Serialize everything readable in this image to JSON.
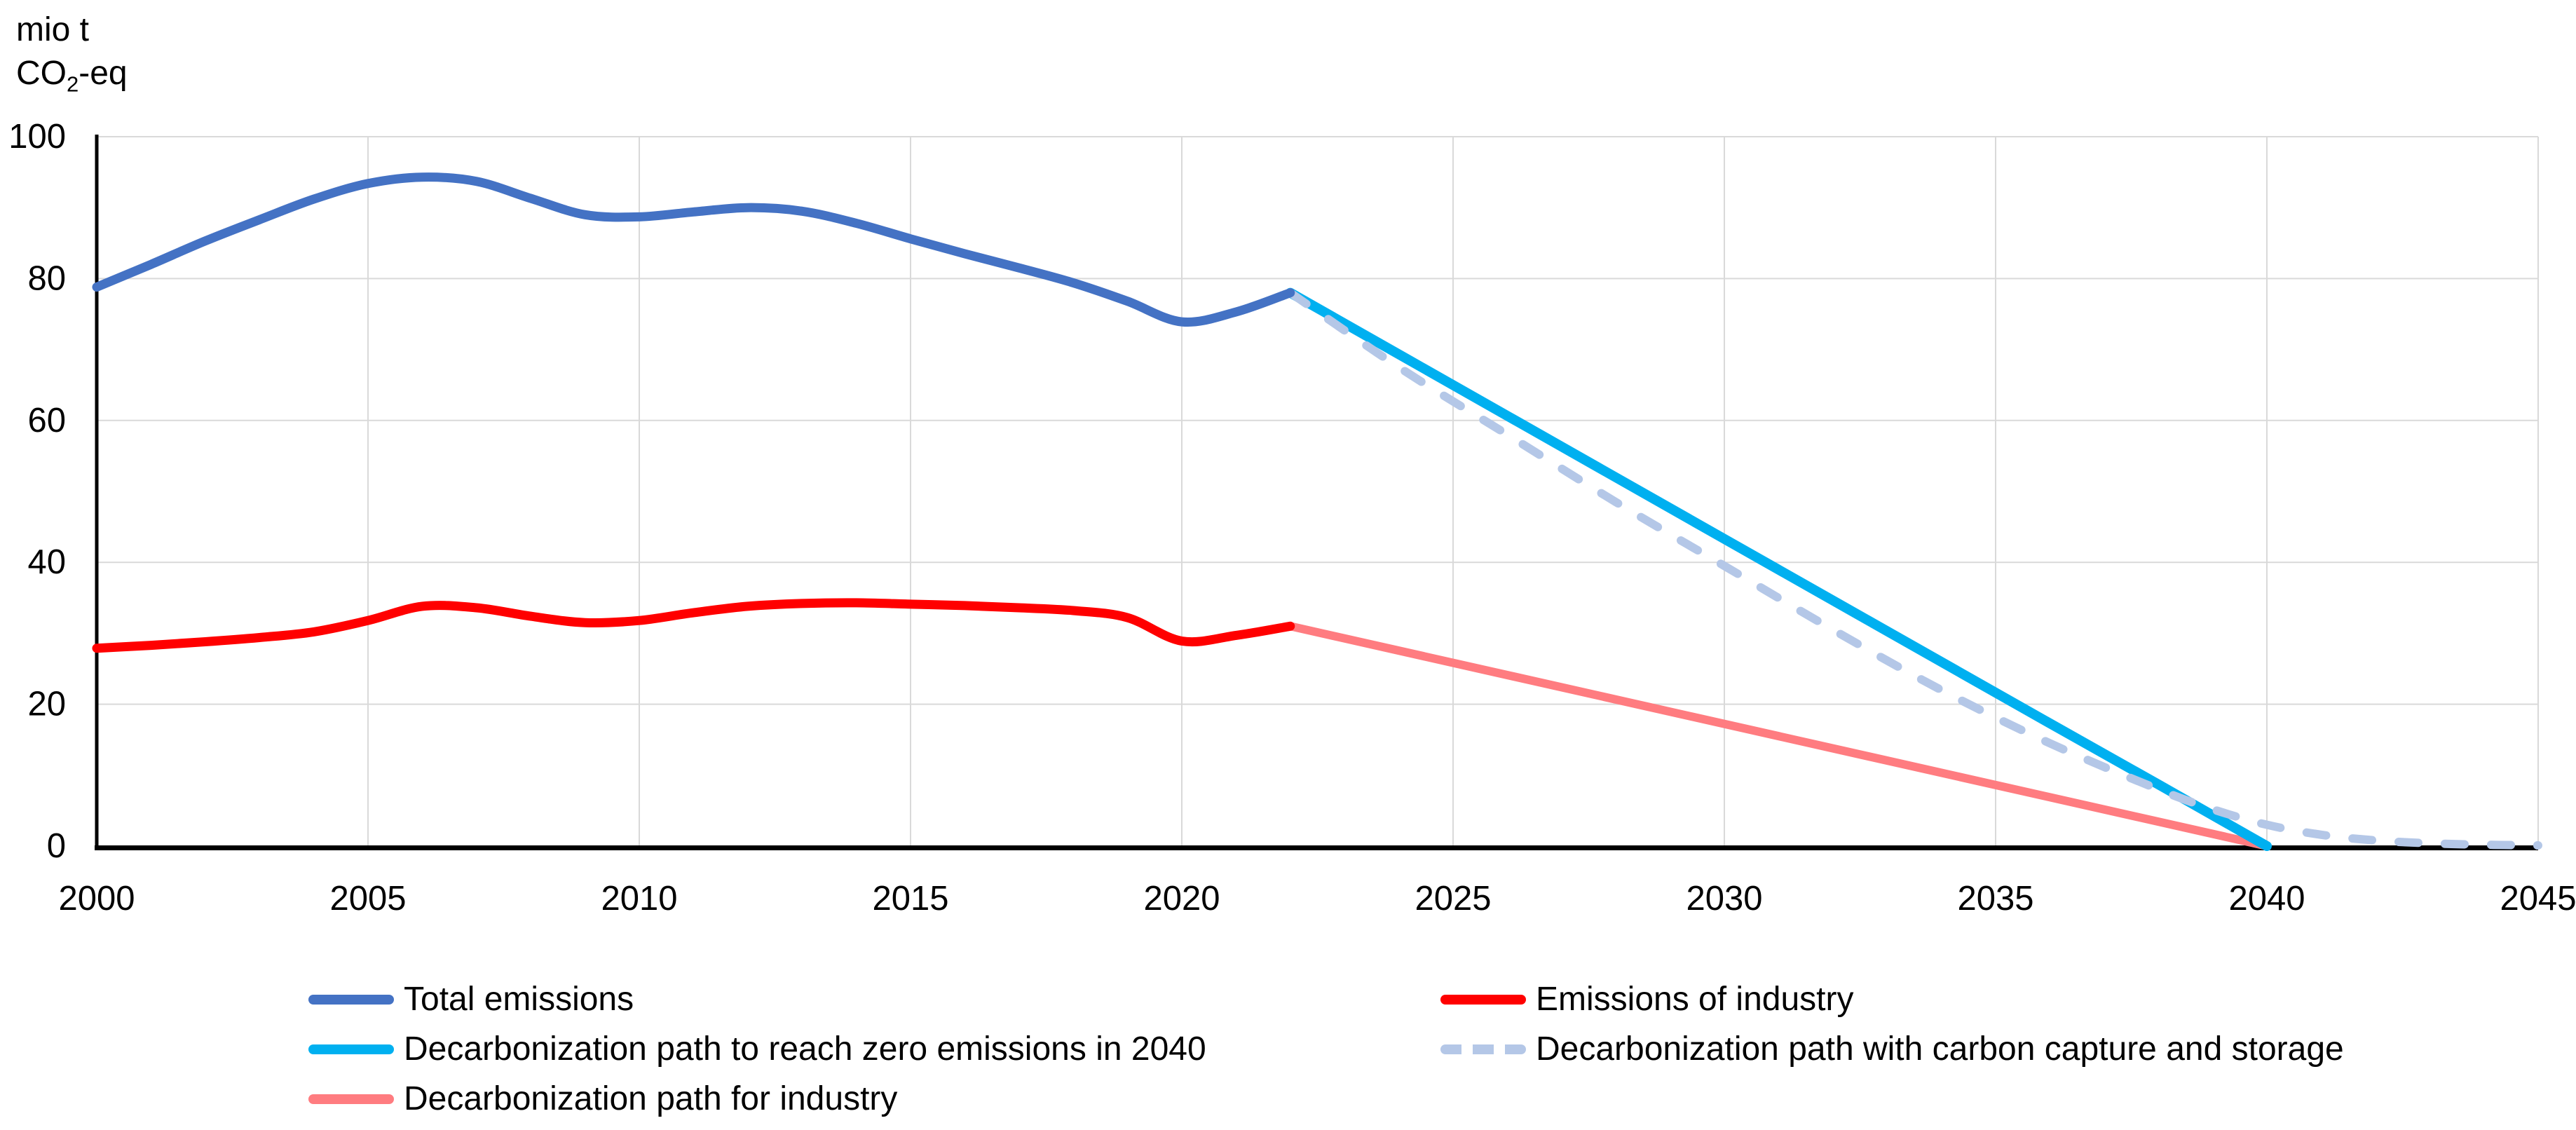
{
  "unit_label": {
    "line1": "mio t",
    "co": "CO",
    "sub": "2",
    "suffix": "-eq"
  },
  "axes": {
    "y_ticks": [
      0,
      20,
      40,
      60,
      80,
      100
    ],
    "x_ticks": [
      2000,
      2005,
      2010,
      2015,
      2020,
      2025,
      2030,
      2035,
      2040,
      2045
    ],
    "y_min": 0,
    "y_max": 100,
    "x_min": 2000,
    "x_max": 2045
  },
  "colors": {
    "grid": "#d9d9d9",
    "axis": "#000000",
    "text": "#000000",
    "total_emissions": "#4472C4",
    "emissions_of_industry": "#FF0000",
    "decarbonization_zero_2040": "#00B0F0",
    "decarbonization_ccs": "#B4C7E7",
    "decarbonization_industry": "#FF7C80"
  },
  "chart_data": {
    "type": "line",
    "title": "",
    "ylabel": "mio t CO2-eq",
    "xlabel": "",
    "ylim": [
      0,
      100
    ],
    "xlim": [
      2000,
      2045
    ],
    "grid": true,
    "legend_position": "bottom",
    "series": [
      {
        "id": "decarbonization_industry",
        "name": "Decarbonization path for industry",
        "color": "#FF7C80",
        "dashed": false,
        "smooth": false,
        "points": [
          [
            2022,
            31
          ],
          [
            2040,
            0
          ]
        ]
      },
      {
        "id": "decarbonization_zero_2040",
        "name": "Decarbonization path to reach zero emissions in 2040",
        "color": "#00B0F0",
        "dashed": false,
        "smooth": false,
        "points": [
          [
            2022,
            78
          ],
          [
            2030,
            43.3
          ],
          [
            2036,
            17.3
          ],
          [
            2038,
            8.7
          ],
          [
            2040,
            0
          ]
        ]
      },
      {
        "id": "decarbonization_ccs",
        "name": "Decarbonization path with carbon capture and storage",
        "color": "#B4C7E7",
        "dashed": true,
        "smooth": true,
        "points": [
          [
            2022,
            78
          ],
          [
            2024,
            67.5
          ],
          [
            2026,
            58
          ],
          [
            2028,
            48.5
          ],
          [
            2030,
            39.5
          ],
          [
            2032,
            30.5
          ],
          [
            2034,
            22
          ],
          [
            2036,
            14.5
          ],
          [
            2038,
            8
          ],
          [
            2039,
            5.2
          ],
          [
            2040,
            3
          ],
          [
            2041,
            1.6
          ],
          [
            2042,
            0.8
          ],
          [
            2043,
            0.4
          ],
          [
            2044,
            0.2
          ],
          [
            2045,
            0.1
          ]
        ]
      },
      {
        "id": "emissions_of_industry",
        "name": "Emissions of industry",
        "color": "#FF0000",
        "dashed": false,
        "smooth": true,
        "points": [
          [
            2000,
            27.9
          ],
          [
            2001,
            28.3
          ],
          [
            2002,
            28.8
          ],
          [
            2003,
            29.4
          ],
          [
            2004,
            30.2
          ],
          [
            2005,
            31.8
          ],
          [
            2006,
            33.8
          ],
          [
            2007,
            33.6
          ],
          [
            2008,
            32.4
          ],
          [
            2009,
            31.5
          ],
          [
            2010,
            31.8
          ],
          [
            2011,
            32.9
          ],
          [
            2012,
            33.8
          ],
          [
            2013,
            34.2
          ],
          [
            2014,
            34.3
          ],
          [
            2015,
            34.1
          ],
          [
            2016,
            33.9
          ],
          [
            2017,
            33.6
          ],
          [
            2018,
            33.2
          ],
          [
            2019,
            32.2
          ],
          [
            2020,
            28.9
          ],
          [
            2021,
            29.7
          ],
          [
            2022,
            31
          ]
        ]
      },
      {
        "id": "total_emissions",
        "name": "Total emissions",
        "color": "#4472C4",
        "dashed": false,
        "smooth": true,
        "points": [
          [
            2000,
            78.8
          ],
          [
            2001,
            82
          ],
          [
            2002,
            85.3
          ],
          [
            2003,
            88.3
          ],
          [
            2004,
            91.2
          ],
          [
            2005,
            93.4
          ],
          [
            2006,
            94.3
          ],
          [
            2007,
            93.7
          ],
          [
            2008,
            91.3
          ],
          [
            2009,
            89
          ],
          [
            2010,
            88.7
          ],
          [
            2011,
            89.4
          ],
          [
            2012,
            90
          ],
          [
            2013,
            89.5
          ],
          [
            2014,
            87.8
          ],
          [
            2015,
            85.6
          ],
          [
            2016,
            83.5
          ],
          [
            2017,
            81.5
          ],
          [
            2018,
            79.4
          ],
          [
            2019,
            76.8
          ],
          [
            2020,
            73.9
          ],
          [
            2021,
            75.3
          ],
          [
            2022,
            78
          ]
        ]
      }
    ]
  },
  "legend": {
    "items": [
      {
        "label": "Total emissions",
        "color": "#4472C4",
        "dashed": false
      },
      {
        "label": "Decarbonization path to reach zero emissions in 2040",
        "color": "#00B0F0",
        "dashed": false
      },
      {
        "label": "Decarbonization path for industry",
        "color": "#FF7C80",
        "dashed": false
      },
      {
        "label": "Emissions of industry",
        "color": "#FF0000",
        "dashed": false
      },
      {
        "label": "Decarbonization path with carbon capture and storage",
        "color": "#B4C7E7",
        "dashed": true
      }
    ]
  }
}
